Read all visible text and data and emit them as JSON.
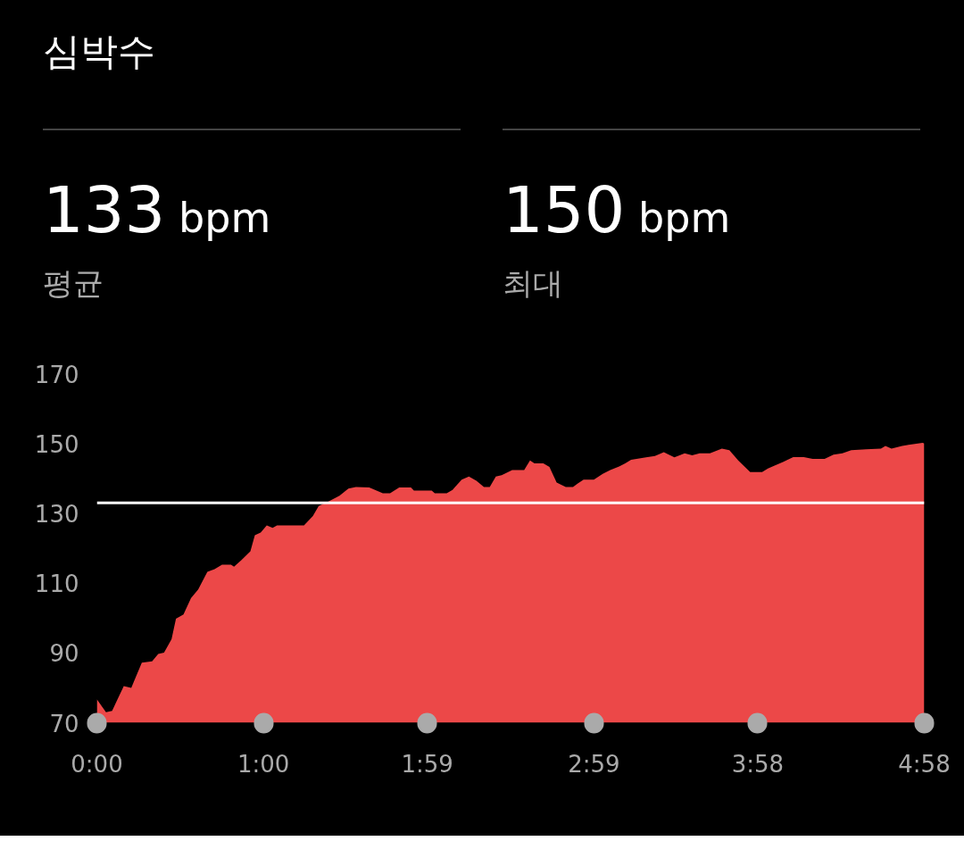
{
  "chart_data": {
    "type": "area",
    "title": "심박수",
    "annotations": [
      "133 bpm",
      "평균",
      "150 bpm",
      "최대"
    ],
    "x": [
      0,
      3.3,
      5.5,
      7.6,
      9.7,
      12.4,
      16.2,
      19.9,
      22.1,
      24.2,
      26.9,
      28.5,
      31.2,
      33.9,
      36.5,
      39.8,
      42.4,
      45.1,
      48.3,
      49.4,
      52.1,
      55.3,
      56.9,
      59,
      61.2,
      63.3,
      64.9,
      74.6,
      77.8,
      79.9,
      83.7,
      87.4,
      90.6,
      93.3,
      98.1,
      103,
      105.6,
      108.9,
      113.1,
      114.2,
      120.6,
      121.7,
      126,
      128.1,
      131.4,
      134,
      136.7,
      139.4,
      141.5,
      143.7,
      145.8,
      149.6,
      153.9,
      156,
      157.6,
      160.8,
      163,
      165.6,
      168.9,
      171.5,
      173.1,
      175.3,
      179,
      182.2,
      184.9,
      188.1,
      190.3,
      192.4,
      197.8,
      201,
      204.2,
      208,
      211.7,
      214.4,
      217.1,
      220.8,
      225.1,
      227.8,
      231,
      235.3,
      239.6,
      241.7,
      243.9,
      247.1,
      250.8,
      254.6,
      257.8,
      262.1,
      265.3,
      268.5,
      271.7,
      277.1,
      282.4,
      284,
      286.2,
      290,
      297.4,
      298
    ],
    "series": [
      {
        "color": "#ec4848",
        "values": [
          76.7,
          73,
          73.4,
          77,
          80.5,
          80,
          87.2,
          87.6,
          89.7,
          90.1,
          93.9,
          99.8,
          101,
          105.7,
          108.2,
          113.2,
          114,
          115.3,
          115.3,
          114.7,
          116.6,
          119.1,
          123.7,
          124.5,
          126.5,
          125.8,
          126.5,
          126.5,
          129.2,
          132.1,
          133.5,
          135,
          137.1,
          137.5,
          137.4,
          135.7,
          135.7,
          137.4,
          137.4,
          136.5,
          136.5,
          135.7,
          135.7,
          136.7,
          139.6,
          140.5,
          139.3,
          137.5,
          137.5,
          140.5,
          140.9,
          142.4,
          142.4,
          145.1,
          144.3,
          144.3,
          143.3,
          138.8,
          137.5,
          137.5,
          138.5,
          139.6,
          139.6,
          141.3,
          142.4,
          143.4,
          144.3,
          145.3,
          146,
          146.4,
          147.5,
          146,
          147.2,
          146.6,
          147.2,
          147.2,
          148.5,
          148.1,
          145.1,
          141.8,
          141.8,
          142.8,
          143.6,
          144.7,
          146.1,
          146.1,
          145.6,
          145.6,
          146.8,
          147.2,
          148.1,
          148.3,
          148.5,
          149.3,
          148.5,
          149.3,
          150.2,
          150
        ]
      }
    ],
    "xlim": [
      0,
      298
    ],
    "xticks": [
      {
        "value": 0,
        "label": "0:00"
      },
      {
        "value": 60,
        "label": "1:00"
      },
      {
        "value": 119,
        "label": "1:59"
      },
      {
        "value": 179,
        "label": "2:59"
      },
      {
        "value": 238,
        "label": "3:58"
      },
      {
        "value": 298,
        "label": "4:58"
      }
    ],
    "ylim": [
      70,
      170
    ],
    "yticks": [
      70,
      90,
      110,
      130,
      150,
      170
    ],
    "ref_lines": [
      {
        "axis": "y",
        "value": 133,
        "color": "#ffffff"
      }
    ],
    "grid": false
  }
}
